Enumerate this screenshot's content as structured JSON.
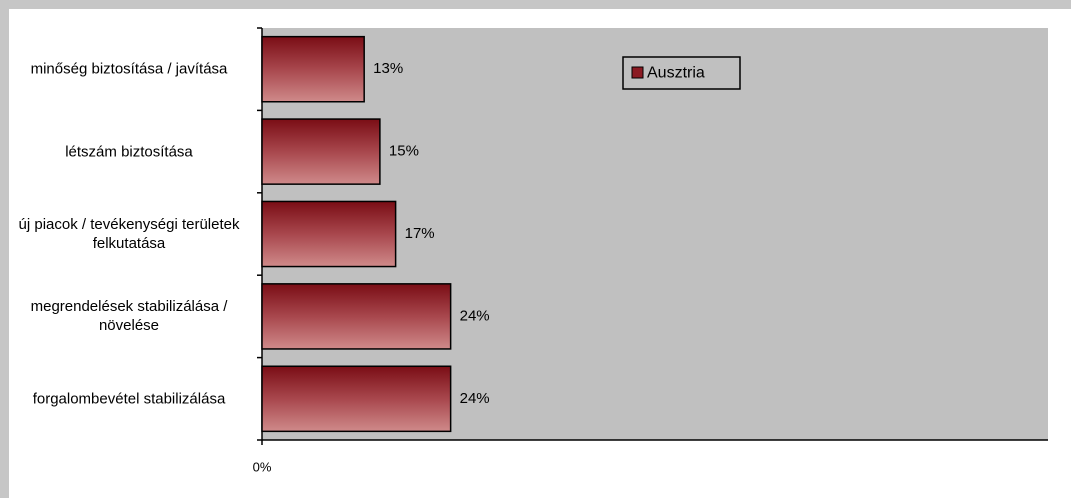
{
  "chart_data": {
    "type": "bar",
    "orientation": "horizontal",
    "categories": [
      "minőség biztosítása / javítása",
      "létszám biztosítása",
      "új piacok / tevékenységi területek felkutatása",
      "megrendelések stabilizálása / növelése",
      "forgalombevétel stabilizálása"
    ],
    "series": [
      {
        "name": "Ausztria",
        "color": "#8b1a22",
        "values": [
          13,
          15,
          17,
          24,
          24
        ],
        "value_labels": [
          "13%",
          "15%",
          "17%",
          "24%",
          "24%"
        ]
      }
    ],
    "xlim": [
      0,
      100
    ],
    "xticks": [
      {
        "value": 0,
        "label": "0%"
      }
    ],
    "legend": "top-right"
  }
}
